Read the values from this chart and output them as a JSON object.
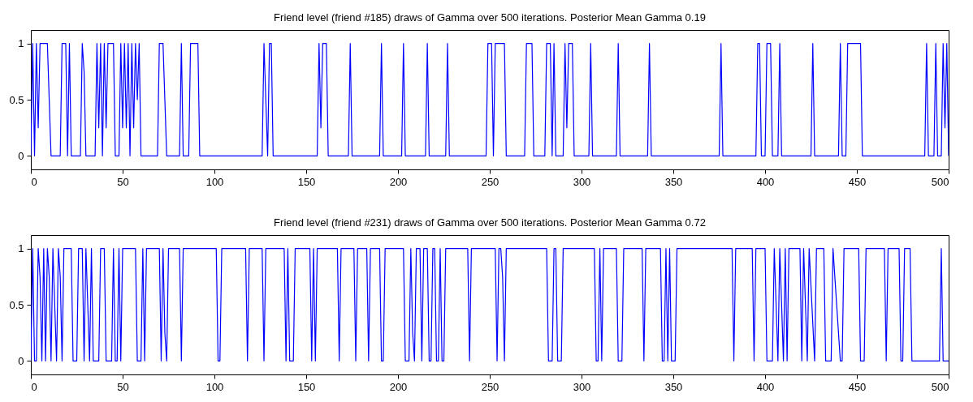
{
  "chart_data": [
    {
      "type": "line",
      "title": "Friend level (friend #185) draws of Gamma over 500 iterations. Posterior Mean Gamma 0.19",
      "xlim": [
        0,
        500
      ],
      "xticks": [
        0,
        50,
        100,
        150,
        200,
        250,
        300,
        350,
        400,
        450,
        500
      ],
      "ylim": [
        -0.12,
        1.12
      ],
      "yticks": [
        0,
        0.5,
        1
      ],
      "grid": false,
      "line_style": "solid",
      "series": [
        {
          "color": "#0000ff",
          "x": [
            0,
            1,
            2,
            3,
            4,
            5,
            6,
            9,
            10,
            11,
            16,
            17,
            19,
            20,
            21,
            22,
            27,
            28,
            29,
            30,
            35,
            36,
            37,
            38,
            39,
            40,
            41,
            42,
            45,
            46,
            48,
            49,
            50,
            51,
            52,
            53,
            54,
            55,
            56,
            57,
            58,
            59,
            60,
            69,
            70,
            72,
            73,
            74,
            81,
            82,
            83,
            86,
            87,
            91,
            92,
            126,
            127,
            128,
            129,
            130,
            131,
            132,
            156,
            157,
            158,
            159,
            161,
            162,
            173,
            174,
            175,
            190,
            191,
            192,
            202,
            203,
            204,
            215,
            216,
            217,
            226,
            227,
            228,
            248,
            249,
            251,
            252,
            253,
            258,
            259,
            269,
            270,
            273,
            274,
            280,
            281,
            283,
            284,
            285,
            286,
            290,
            291,
            292,
            293,
            295,
            296,
            304,
            305,
            306,
            319,
            320,
            321,
            336,
            337,
            338,
            375,
            376,
            377,
            395,
            396,
            397,
            398,
            400,
            401,
            403,
            404,
            407,
            408,
            409,
            425,
            426,
            427,
            440,
            441,
            442,
            444,
            445,
            452,
            453,
            487,
            488,
            489,
            492,
            493,
            494,
            496,
            497,
            498,
            499,
            500
          ],
          "values": [
            0,
            1,
            0,
            1,
            0.25,
            1,
            1,
            1,
            0.5,
            0,
            0,
            1,
            1,
            0,
            1,
            0,
            0,
            1,
            0.75,
            0,
            0,
            1,
            0.25,
            1,
            0,
            1,
            0.25,
            1,
            1,
            0,
            0,
            1,
            0.25,
            1,
            0.25,
            1,
            0,
            1,
            0.25,
            1,
            0.5,
            1,
            0,
            0,
            1,
            1,
            0.5,
            0,
            0,
            1,
            0,
            0,
            1,
            1,
            0,
            0,
            1,
            0.5,
            0,
            1,
            1,
            0,
            0,
            1,
            0.25,
            1,
            1,
            0,
            0,
            1,
            0,
            0,
            1,
            0,
            0,
            1,
            0,
            0,
            1,
            0,
            0,
            1,
            0,
            0,
            1,
            1,
            0,
            1,
            1,
            0,
            0,
            1,
            1,
            0,
            0,
            1,
            1,
            0,
            1,
            0,
            0,
            1,
            0.25,
            1,
            1,
            0,
            0,
            1,
            0,
            0,
            1,
            0,
            0,
            1,
            0,
            0,
            1,
            0,
            0,
            1,
            1,
            0,
            0,
            1,
            1,
            0,
            0,
            1,
            0,
            0,
            1,
            0,
            0,
            1,
            0,
            0,
            1,
            1,
            0,
            0,
            1,
            0,
            0,
            1,
            0,
            0,
            1,
            0.25,
            1,
            0
          ]
        }
      ]
    },
    {
      "type": "line",
      "title": "Friend level (friend #231) draws of Gamma over 500 iterations. Posterior Mean Gamma 0.72",
      "xlim": [
        0,
        500
      ],
      "xticks": [
        0,
        50,
        100,
        150,
        200,
        250,
        300,
        350,
        400,
        450,
        500
      ],
      "ylim": [
        -0.12,
        1.12
      ],
      "yticks": [
        0,
        0.5,
        1
      ],
      "grid": false,
      "line_style": "solid",
      "series": [
        {
          "color": "#0000ff",
          "x": [
            0,
            1,
            2,
            3,
            4,
            5,
            6,
            7,
            8,
            9,
            10,
            11,
            12,
            13,
            14,
            15,
            16,
            17,
            18,
            22,
            23,
            25,
            26,
            28,
            29,
            30,
            31,
            32,
            33,
            34,
            37,
            38,
            40,
            41,
            44,
            45,
            46,
            47,
            48,
            49,
            50,
            57,
            58,
            60,
            61,
            62,
            63,
            70,
            71,
            72,
            73,
            74,
            75,
            81,
            82,
            83,
            101,
            102,
            103,
            104,
            117,
            118,
            119,
            126,
            127,
            128,
            138,
            139,
            140,
            141,
            143,
            144,
            152,
            153,
            154,
            155,
            156,
            167,
            168,
            169,
            176,
            177,
            178,
            183,
            184,
            185,
            190,
            191,
            192,
            193,
            203,
            204,
            206,
            207,
            208,
            209,
            210,
            212,
            213,
            214,
            216,
            217,
            218,
            219,
            220,
            221,
            222,
            223,
            224,
            225,
            226,
            238,
            239,
            240,
            253,
            254,
            255,
            256,
            257,
            258,
            259,
            281,
            282,
            284,
            285,
            286,
            287,
            289,
            290,
            307,
            308,
            309,
            310,
            311,
            312,
            319,
            320,
            322,
            323,
            333,
            334,
            335,
            343,
            344,
            345,
            346,
            347,
            348,
            349,
            351,
            352,
            382,
            383,
            384,
            393,
            394,
            395,
            400,
            401,
            404,
            405,
            407,
            408,
            410,
            411,
            412,
            413,
            419,
            420,
            421,
            423,
            424,
            427,
            428,
            432,
            433,
            436,
            437,
            441,
            442,
            443,
            451,
            452,
            454,
            455,
            465,
            466,
            467,
            473,
            474,
            475,
            476,
            479,
            480,
            495,
            496,
            497,
            500
          ],
          "values": [
            0,
            1,
            0,
            0,
            1,
            0.75,
            0,
            1,
            0,
            1,
            0.75,
            0,
            1,
            0.5,
            0,
            1,
            0.75,
            0,
            1,
            1,
            0,
            0,
            1,
            1,
            0,
            1,
            0.5,
            0,
            1,
            0,
            0,
            1,
            1,
            0,
            0,
            1,
            0,
            0,
            1,
            0,
            1,
            1,
            0,
            0,
            1,
            0,
            1,
            1,
            0,
            1,
            0.25,
            0,
            1,
            1,
            0,
            1,
            1,
            0,
            0,
            1,
            1,
            0,
            1,
            1,
            0,
            1,
            1,
            0,
            1,
            0,
            0,
            1,
            1,
            0,
            1,
            0,
            1,
            1,
            0,
            1,
            1,
            0,
            1,
            1,
            0,
            1,
            1,
            0,
            0,
            1,
            1,
            0,
            0,
            1,
            0.25,
            0,
            1,
            1,
            0,
            1,
            1,
            0,
            0,
            1,
            1,
            0,
            0,
            1,
            0,
            0,
            1,
            1,
            0,
            1,
            1,
            0,
            1,
            1,
            0.75,
            0,
            1,
            1,
            0,
            0,
            1,
            1,
            0,
            0,
            1,
            1,
            0,
            0,
            1,
            0,
            1,
            1,
            0,
            0,
            1,
            1,
            0,
            1,
            1,
            0,
            0,
            1,
            0,
            1,
            0,
            0,
            1,
            1,
            0,
            1,
            1,
            0,
            1,
            1,
            0,
            0,
            1,
            0,
            1,
            0,
            1,
            0,
            1,
            1,
            0,
            1,
            0,
            1,
            0,
            1,
            1,
            0,
            0,
            1,
            0,
            0,
            1,
            1,
            0,
            0,
            1,
            1,
            0,
            1,
            1,
            0,
            0,
            1,
            1,
            0,
            0,
            1,
            0,
            0
          ]
        }
      ]
    }
  ]
}
